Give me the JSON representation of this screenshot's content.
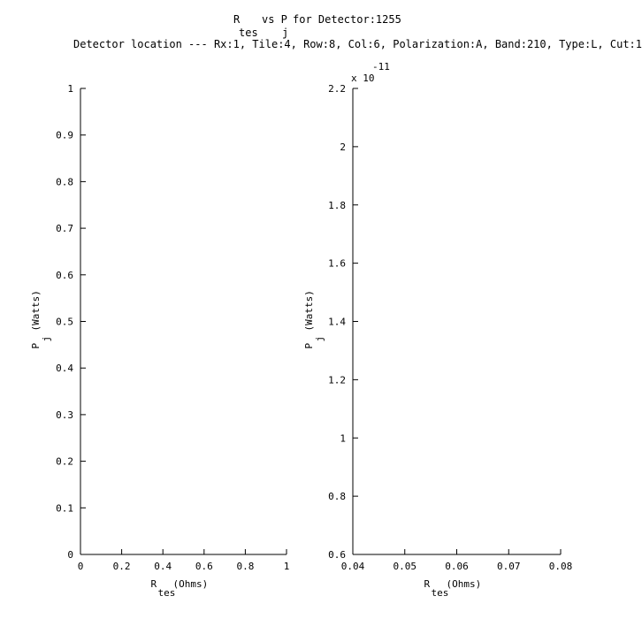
{
  "title": {
    "line1": {
      "r": "R",
      "r_sub": "tes",
      "vs": "vs P",
      "p_sub": "j",
      "rest": "for Detector:1255"
    },
    "line2": "Detector location --- Rx:1, Tile:4, Row:8, Col:6, Polarization:A, Band:210, Type:L, Cut:1"
  },
  "chart_data": [
    {
      "type": "scatter",
      "series": [],
      "xlabel": {
        "main": "R",
        "sub": "tes",
        "unit": "(Ohms)"
      },
      "ylabel": {
        "main": "P",
        "sub": "j",
        "unit": "(Watts)"
      },
      "xlim": [
        0,
        1
      ],
      "ylim": [
        0,
        1
      ],
      "xticks": [
        0,
        0.2,
        0.4,
        0.6,
        0.8,
        1
      ],
      "xtick_labels": [
        "0",
        "0.2",
        "0.4",
        "0.6",
        "0.8",
        "1"
      ],
      "yticks": [
        0,
        0.1,
        0.2,
        0.3,
        0.4,
        0.5,
        0.6,
        0.7,
        0.8,
        0.9,
        1
      ],
      "ytick_labels": [
        "0",
        "0.1",
        "0.2",
        "0.3",
        "0.4",
        "0.5",
        "0.6",
        "0.7",
        "0.8",
        "0.9",
        "1"
      ],
      "grid": false
    },
    {
      "type": "scatter",
      "series": [],
      "xlabel": {
        "main": "R",
        "sub": "tes",
        "unit": "(Ohms)"
      },
      "ylabel": {
        "main": "P",
        "sub": "j",
        "unit": "(Watts)"
      },
      "xlim": [
        0.04,
        0.08
      ],
      "ylim": [
        0.6,
        2.2
      ],
      "y_scale_multiplier": {
        "base": "x 10",
        "exponent": "-11"
      },
      "xticks": [
        0.04,
        0.05,
        0.06,
        0.07,
        0.08
      ],
      "xtick_labels": [
        "0.04",
        "0.05",
        "0.06",
        "0.07",
        "0.08"
      ],
      "yticks": [
        0.6,
        0.8,
        1,
        1.2,
        1.4,
        1.6,
        1.8,
        2,
        2.2
      ],
      "ytick_labels": [
        "0.6",
        "0.8",
        "1",
        "1.2",
        "1.4",
        "1.6",
        "1.8",
        "2",
        "2.2"
      ],
      "grid": false
    }
  ]
}
